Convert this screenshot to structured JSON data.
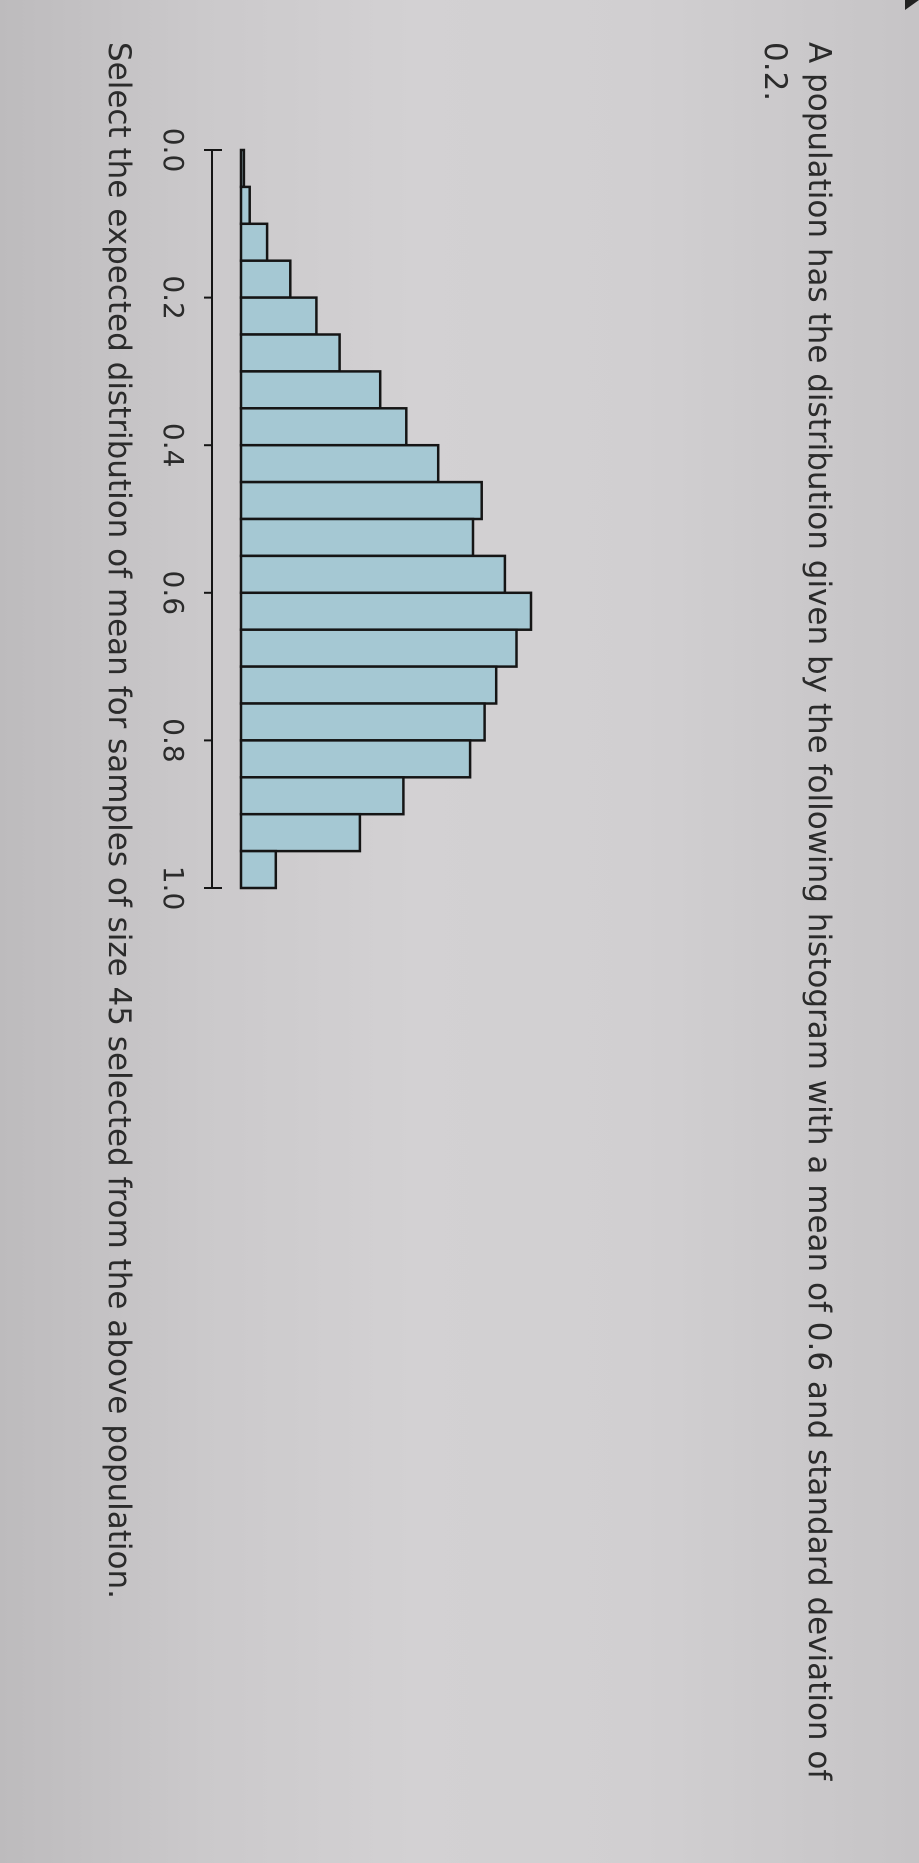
{
  "question": {
    "text": "A population has the distribution given by the following histogram with a mean of 0.6 and standard deviation of 0.2."
  },
  "prompt": {
    "text": "Select the expected distribution of mean for samples of size 45 selected from the above population."
  },
  "chart_data": {
    "type": "bar",
    "title": "",
    "xlabel": "",
    "ylabel": "",
    "bin_width": 0.05,
    "x": [
      0.0,
      0.05,
      0.1,
      0.15,
      0.2,
      0.25,
      0.3,
      0.35,
      0.4,
      0.45,
      0.5,
      0.55,
      0.6,
      0.65,
      0.7,
      0.75,
      0.8,
      0.85,
      0.9,
      0.95
    ],
    "values": [
      0.01,
      0.03,
      0.09,
      0.17,
      0.26,
      0.34,
      0.48,
      0.57,
      0.68,
      0.83,
      0.8,
      0.91,
      1.0,
      0.95,
      0.88,
      0.84,
      0.79,
      0.56,
      0.41,
      0.12
    ],
    "xlim": [
      0.0,
      1.0
    ],
    "ylim": [
      0,
      1
    ],
    "xticks": [
      "0.0",
      "0.2",
      "0.4",
      "0.6",
      "0.8",
      "1.0"
    ],
    "colors": {
      "bar_fill": "#a5c8d3",
      "bar_edge": "#151515"
    },
    "grid": false
  }
}
